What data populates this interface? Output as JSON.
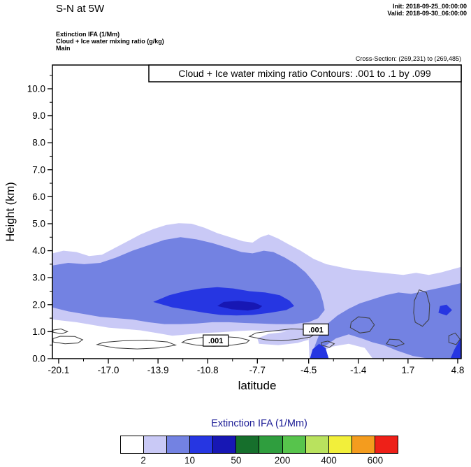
{
  "header": {
    "title": "S-N at 5W",
    "init_line": "Init: 2018-09-25_00:00:00",
    "valid_line": "Valid: 2018-09-30_06:00:00",
    "field_line1": "Extinction IFA  (1/Mm)",
    "field_line2": "Cloud + Ice water mixing ratio   (g/kg)",
    "field_line3": "Main",
    "cross_section": "Cross-Section: (269,231) to (269,485)"
  },
  "chart_data": {
    "type": "contour-cross-section",
    "title": "Cloud + Ice water mixing ratio Contours: .001 to .1 by .099",
    "xlabel": "latitude",
    "ylabel": "Height (km)",
    "xlim": [
      -20.49,
      5.02
    ],
    "ylim": [
      0,
      10.88
    ],
    "grid": false,
    "x_ticks": {
      "values": [
        -20.1,
        -17.0,
        -13.9,
        -10.8,
        -7.7,
        -4.5,
        -1.4,
        1.7,
        4.8
      ],
      "labels": [
        "-20.1",
        "-17.0",
        "-13.9",
        "-10.8",
        "-7.7",
        "-4.5",
        "-1.4",
        "1.7",
        "4.8"
      ]
    },
    "y_ticks": {
      "values": [
        0,
        1,
        2,
        3,
        4,
        5,
        6,
        7,
        8,
        9,
        10
      ],
      "labels": [
        "0.0",
        "1.0",
        "2.0",
        "3.0",
        "4.0",
        "5.0",
        "6.0",
        "7.0",
        "8.0",
        "9.0",
        "10.0"
      ]
    },
    "shaded_regions": [
      {
        "name": "light-outer",
        "level": "2-10",
        "color": "#c9c9f6",
        "points": [
          [
            -20.49,
            1.45
          ],
          [
            -20.49,
            3.9
          ],
          [
            -19.8,
            4.0
          ],
          [
            -19.0,
            3.95
          ],
          [
            -18.2,
            3.8
          ],
          [
            -17.4,
            3.85
          ],
          [
            -16.6,
            4.1
          ],
          [
            -15.8,
            4.35
          ],
          [
            -15.0,
            4.6
          ],
          [
            -14.2,
            4.8
          ],
          [
            -13.4,
            4.95
          ],
          [
            -12.6,
            5.02
          ],
          [
            -11.8,
            5.0
          ],
          [
            -11.0,
            4.85
          ],
          [
            -10.2,
            4.65
          ],
          [
            -9.4,
            4.5
          ],
          [
            -8.6,
            4.35
          ],
          [
            -8.0,
            4.3
          ],
          [
            -7.5,
            4.5
          ],
          [
            -7.0,
            4.6
          ],
          [
            -6.4,
            4.45
          ],
          [
            -5.8,
            4.25
          ],
          [
            -5.0,
            4.0
          ],
          [
            -4.2,
            3.7
          ],
          [
            -3.4,
            3.5
          ],
          [
            -2.6,
            3.4
          ],
          [
            -1.8,
            3.3
          ],
          [
            -1.0,
            3.25
          ],
          [
            -0.2,
            3.2
          ],
          [
            0.6,
            3.15
          ],
          [
            1.4,
            3.1
          ],
          [
            2.2,
            3.18
          ],
          [
            3.0,
            3.1
          ],
          [
            3.8,
            3.2
          ],
          [
            4.4,
            3.3
          ],
          [
            5.02,
            3.4
          ],
          [
            5.02,
            0.0
          ],
          [
            -0.5,
            0.0
          ],
          [
            -1.0,
            0.4
          ],
          [
            -2.0,
            0.55
          ],
          [
            -3.0,
            0.45
          ],
          [
            -3.8,
            0.25
          ],
          [
            -4.3,
            0.0
          ],
          [
            -4.45,
            0.0
          ],
          [
            -4.5,
            0.75
          ],
          [
            -5.0,
            0.9
          ],
          [
            -6.0,
            1.0
          ],
          [
            -7.0,
            1.02
          ],
          [
            -8.0,
            1.05
          ],
          [
            -9.0,
            1.02
          ],
          [
            -10.0,
            0.98
          ],
          [
            -11.0,
            0.95
          ],
          [
            -12.0,
            0.9
          ],
          [
            -13.0,
            0.85
          ],
          [
            -14.0,
            0.95
          ],
          [
            -15.0,
            1.05
          ],
          [
            -16.0,
            1.1
          ],
          [
            -17.0,
            1.15
          ],
          [
            -18.0,
            1.25
          ],
          [
            -19.0,
            1.35
          ]
        ]
      },
      {
        "name": "light-strip",
        "level": "2-10",
        "color": "#c9c9f6",
        "points": [
          [
            -7.6,
            0.55
          ],
          [
            -6.4,
            0.5
          ],
          [
            -5.2,
            0.58
          ],
          [
            -4.5,
            0.7
          ],
          [
            -4.7,
            0.95
          ],
          [
            -5.8,
            1.0
          ],
          [
            -7.0,
            0.92
          ],
          [
            -7.7,
            0.75
          ]
        ]
      },
      {
        "name": "mid-main",
        "level": "10-50",
        "color": "#7382e2",
        "points": [
          [
            -20.49,
            1.9
          ],
          [
            -20.49,
            3.45
          ],
          [
            -19.5,
            3.55
          ],
          [
            -18.5,
            3.5
          ],
          [
            -17.5,
            3.55
          ],
          [
            -16.5,
            3.75
          ],
          [
            -15.5,
            4.0
          ],
          [
            -14.5,
            4.2
          ],
          [
            -13.5,
            4.4
          ],
          [
            -12.5,
            4.5
          ],
          [
            -11.5,
            4.42
          ],
          [
            -10.5,
            4.28
          ],
          [
            -9.5,
            4.1
          ],
          [
            -8.7,
            3.95
          ],
          [
            -8.0,
            3.9
          ],
          [
            -7.3,
            4.0
          ],
          [
            -6.7,
            3.95
          ],
          [
            -6.0,
            3.75
          ],
          [
            -5.3,
            3.5
          ],
          [
            -4.7,
            3.2
          ],
          [
            -4.2,
            2.85
          ],
          [
            -3.8,
            2.5
          ],
          [
            -3.6,
            2.1
          ],
          [
            -3.5,
            1.8
          ],
          [
            -3.9,
            1.5
          ],
          [
            -4.5,
            1.35
          ],
          [
            -5.5,
            1.28
          ],
          [
            -6.5,
            1.28
          ],
          [
            -7.5,
            1.3
          ],
          [
            -8.5,
            1.32
          ],
          [
            -9.5,
            1.35
          ],
          [
            -10.5,
            1.35
          ],
          [
            -11.5,
            1.3
          ],
          [
            -12.5,
            1.28
          ],
          [
            -13.5,
            1.28
          ],
          [
            -14.5,
            1.35
          ],
          [
            -15.5,
            1.45
          ],
          [
            -16.5,
            1.5
          ],
          [
            -17.5,
            1.55
          ],
          [
            -18.5,
            1.65
          ],
          [
            -19.5,
            1.75
          ]
        ]
      },
      {
        "name": "mid-right",
        "level": "10-50",
        "color": "#7382e2",
        "points": [
          [
            -4.35,
            0.0
          ],
          [
            -4.1,
            0.5
          ],
          [
            -3.8,
            0.95
          ],
          [
            -3.3,
            1.3
          ],
          [
            -2.7,
            1.6
          ],
          [
            -2.0,
            1.85
          ],
          [
            -1.3,
            2.05
          ],
          [
            -0.5,
            2.2
          ],
          [
            0.3,
            2.35
          ],
          [
            1.1,
            2.45
          ],
          [
            1.9,
            2.4
          ],
          [
            2.7,
            2.5
          ],
          [
            3.5,
            2.6
          ],
          [
            4.3,
            2.7
          ],
          [
            5.02,
            2.8
          ],
          [
            5.02,
            0.0
          ],
          [
            3.0,
            0.0
          ],
          [
            2.0,
            0.1
          ],
          [
            1.0,
            0.3
          ],
          [
            0.2,
            0.5
          ],
          [
            -0.5,
            0.6
          ],
          [
            -1.2,
            0.75
          ],
          [
            -2.0,
            0.9
          ],
          [
            -2.8,
            0.75
          ],
          [
            -3.5,
            0.45
          ],
          [
            -4.0,
            0.15
          ]
        ]
      },
      {
        "name": "vivid-core",
        "level": "50-200",
        "color": "#2636e2",
        "points": [
          [
            -14.2,
            2.1
          ],
          [
            -13.2,
            2.35
          ],
          [
            -12.2,
            2.5
          ],
          [
            -11.2,
            2.6
          ],
          [
            -10.2,
            2.65
          ],
          [
            -9.2,
            2.6
          ],
          [
            -8.2,
            2.5
          ],
          [
            -7.2,
            2.45
          ],
          [
            -6.3,
            2.35
          ],
          [
            -5.7,
            2.15
          ],
          [
            -5.4,
            1.95
          ],
          [
            -5.9,
            1.8
          ],
          [
            -6.9,
            1.7
          ],
          [
            -8.0,
            1.62
          ],
          [
            -9.0,
            1.6
          ],
          [
            -10.0,
            1.62
          ],
          [
            -11.0,
            1.7
          ],
          [
            -12.0,
            1.8
          ],
          [
            -13.0,
            1.9
          ]
        ]
      },
      {
        "name": "vivid-right-corner",
        "level": "50-200",
        "color": "#2636e2",
        "points": [
          [
            4.35,
            0.0
          ],
          [
            4.6,
            0.35
          ],
          [
            4.9,
            0.65
          ],
          [
            5.02,
            0.8
          ],
          [
            5.02,
            0.0
          ]
        ]
      },
      {
        "name": "vivid-right-small",
        "level": "50-200",
        "color": "#2636e2",
        "points": [
          [
            3.6,
            1.7
          ],
          [
            4.1,
            1.6
          ],
          [
            4.45,
            1.8
          ],
          [
            4.1,
            2.0
          ],
          [
            3.7,
            1.95
          ]
        ]
      },
      {
        "name": "vivid-bottom",
        "level": "50-200",
        "color": "#2636e2",
        "points": [
          [
            -4.42,
            0.0
          ],
          [
            -4.25,
            0.35
          ],
          [
            -3.85,
            0.55
          ],
          [
            -3.45,
            0.4
          ],
          [
            -3.25,
            0.0
          ]
        ]
      },
      {
        "name": "dark-core",
        "level": "200+",
        "color": "#1717b4",
        "points": [
          [
            -10.2,
            1.95
          ],
          [
            -9.3,
            1.83
          ],
          [
            -8.3,
            1.78
          ],
          [
            -7.6,
            1.85
          ],
          [
            -7.4,
            1.95
          ],
          [
            -7.9,
            2.08
          ],
          [
            -8.9,
            2.14
          ],
          [
            -9.8,
            2.1
          ]
        ]
      }
    ],
    "contour_lines": [
      {
        "level": 0.001,
        "points": [
          [
            -20.45,
            0.62
          ],
          [
            -19.7,
            0.55
          ],
          [
            -18.9,
            0.58
          ],
          [
            -18.6,
            0.7
          ],
          [
            -19.1,
            0.82
          ],
          [
            -20.0,
            0.83
          ],
          [
            -20.45,
            0.74
          ]
        ]
      },
      {
        "level": 0.001,
        "points": [
          [
            -20.45,
            0.98
          ],
          [
            -19.9,
            0.92
          ],
          [
            -19.55,
            1.0
          ],
          [
            -19.95,
            1.1
          ],
          [
            -20.45,
            1.06
          ]
        ]
      },
      {
        "level": 0.001,
        "points": [
          [
            -17.7,
            0.52
          ],
          [
            -16.6,
            0.4
          ],
          [
            -15.2,
            0.36
          ],
          [
            -13.8,
            0.4
          ],
          [
            -12.8,
            0.5
          ],
          [
            -13.3,
            0.62
          ],
          [
            -14.6,
            0.68
          ],
          [
            -16.1,
            0.66
          ],
          [
            -17.3,
            0.6
          ]
        ]
      },
      {
        "level": 0.001,
        "points": [
          [
            -12.4,
            0.6
          ],
          [
            -11.5,
            0.5
          ],
          [
            -10.4,
            0.46
          ],
          [
            -9.3,
            0.5
          ],
          [
            -8.4,
            0.58
          ],
          [
            -8.2,
            0.68
          ],
          [
            -8.9,
            0.78
          ],
          [
            -10.0,
            0.82
          ],
          [
            -11.2,
            0.78
          ],
          [
            -12.1,
            0.7
          ]
        ]
      },
      {
        "level": 0.001,
        "points": [
          [
            -8.2,
            0.82
          ],
          [
            -7.2,
            0.7
          ],
          [
            -6.2,
            0.66
          ],
          [
            -5.2,
            0.72
          ],
          [
            -4.4,
            0.8
          ],
          [
            -4.0,
            0.95
          ],
          [
            -4.5,
            1.08
          ],
          [
            -5.6,
            1.1
          ],
          [
            -6.8,
            1.02
          ],
          [
            -7.8,
            0.95
          ]
        ]
      },
      {
        "level": 0.001,
        "points": [
          [
            -3.7,
            0.5
          ],
          [
            -3.2,
            0.42
          ],
          [
            -2.9,
            0.55
          ],
          [
            -3.3,
            0.65
          ],
          [
            -3.7,
            0.6
          ]
        ]
      },
      {
        "level": 0.001,
        "points": [
          [
            -1.9,
            1.15
          ],
          [
            -1.3,
            0.95
          ],
          [
            -0.7,
            1.0
          ],
          [
            -0.4,
            1.25
          ],
          [
            -0.7,
            1.5
          ],
          [
            -1.4,
            1.55
          ],
          [
            -1.85,
            1.35
          ]
        ]
      },
      {
        "level": 0.001,
        "points": [
          [
            0.35,
            0.55
          ],
          [
            0.95,
            0.45
          ],
          [
            1.45,
            0.55
          ],
          [
            1.15,
            0.7
          ],
          [
            0.55,
            0.72
          ]
        ]
      },
      {
        "level": 0.001,
        "points": [
          [
            2.15,
            1.35
          ],
          [
            2.6,
            1.2
          ],
          [
            3.0,
            1.45
          ],
          [
            3.05,
            2.0
          ],
          [
            2.85,
            2.45
          ],
          [
            2.4,
            2.55
          ],
          [
            2.1,
            2.15
          ],
          [
            2.05,
            1.7
          ]
        ]
      },
      {
        "level": 0.001,
        "points": [
          [
            4.25,
            0.6
          ],
          [
            4.7,
            0.52
          ],
          [
            4.95,
            0.72
          ],
          [
            4.65,
            0.95
          ],
          [
            4.25,
            0.85
          ]
        ]
      }
    ],
    "contour_labels": [
      {
        "text": ".001",
        "lat": -10.3,
        "km": 0.67
      },
      {
        "text": ".001",
        "lat": -4.05,
        "km": 1.08
      }
    ],
    "colorbar": {
      "title": "Extinction IFA  (1/Mm)",
      "colors": [
        "#ffffff",
        "#c9c9f6",
        "#7382e2",
        "#2636e2",
        "#1717b4",
        "#166f2c",
        "#2f9e3e",
        "#57c44c",
        "#b9e25e",
        "#f2ef3a",
        "#f49c1e",
        "#ee2018"
      ],
      "labels": [
        {
          "text": "2",
          "boundary": 1
        },
        {
          "text": "10",
          "boundary": 3
        },
        {
          "text": "50",
          "boundary": 5
        },
        {
          "text": "200",
          "boundary": 7
        },
        {
          "text": "400",
          "boundary": 9
        },
        {
          "text": "600",
          "boundary": 11
        }
      ]
    }
  }
}
